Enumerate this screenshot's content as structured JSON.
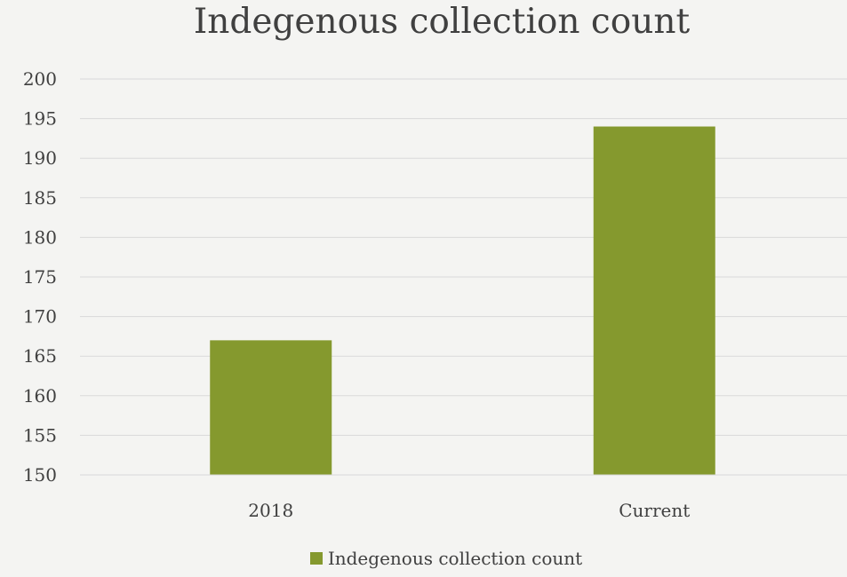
{
  "chart_data": {
    "type": "bar",
    "title": "Indegenous collection count",
    "categories": [
      "2018",
      "Current"
    ],
    "series": [
      {
        "name": "Indegenous collection count",
        "values": [
          167,
          194
        ],
        "color": "#85992e"
      }
    ],
    "ylim": [
      150,
      200
    ],
    "yticks": [
      150,
      155,
      160,
      165,
      170,
      175,
      180,
      185,
      190,
      195,
      200
    ],
    "grid": true,
    "legend_position": "bottom",
    "xlabel": "",
    "ylabel": ""
  }
}
